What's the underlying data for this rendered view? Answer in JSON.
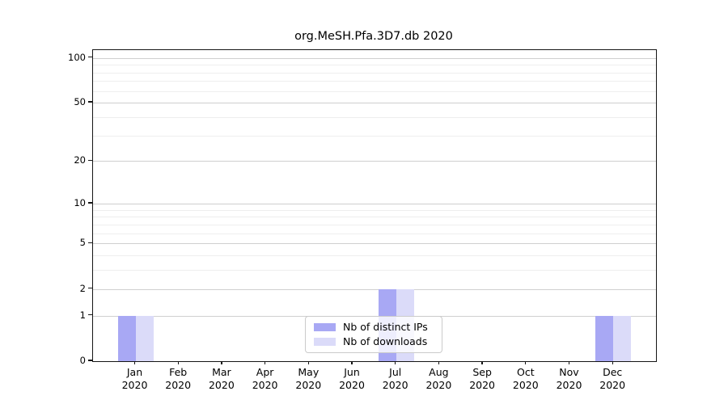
{
  "chart_data": {
    "type": "bar",
    "title": "org.MeSH.Pfa.3D7.db 2020",
    "categories": [
      "Jan",
      "Feb",
      "Mar",
      "Apr",
      "May",
      "Jun",
      "Jul",
      "Aug",
      "Sep",
      "Oct",
      "Nov",
      "Dec"
    ],
    "category_year": "2020",
    "series": [
      {
        "name": "Nb of distinct IPs",
        "color": "#a8a8f4",
        "values": [
          1,
          0,
          0,
          0,
          0,
          0,
          2,
          0,
          0,
          0,
          0,
          1
        ]
      },
      {
        "name": "Nb of downloads",
        "color": "#dbdbf9",
        "values": [
          1,
          0,
          0,
          0,
          0,
          0,
          2,
          0,
          0,
          0,
          0,
          1
        ]
      }
    ],
    "yscale": "log1p",
    "ylim": [
      0,
      113
    ],
    "yticks": [
      0,
      1,
      2,
      5,
      10,
      20,
      50,
      100
    ],
    "minor_gridlines": [
      3,
      4,
      6,
      7,
      8,
      9,
      30,
      40,
      60,
      70,
      80,
      90
    ],
    "grid": true,
    "legend_position": "lower center",
    "axis_color": "#151515"
  }
}
